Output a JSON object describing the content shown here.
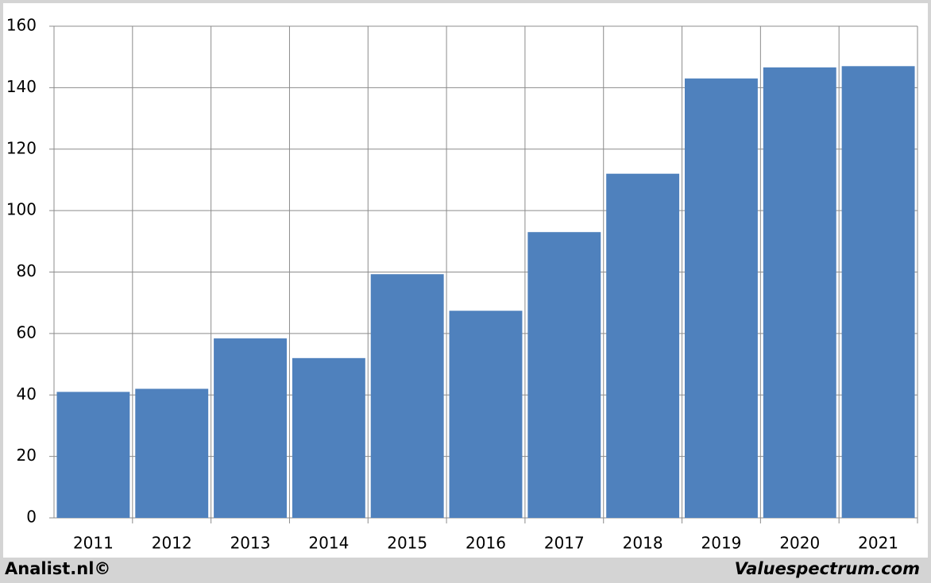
{
  "chart_data": {
    "type": "bar",
    "categories": [
      "2011",
      "2012",
      "2013",
      "2014",
      "2015",
      "2016",
      "2017",
      "2018",
      "2019",
      "2020",
      "2021"
    ],
    "values": [
      41,
      42,
      58.4,
      52,
      79.3,
      67.4,
      93,
      112,
      143,
      146.6,
      147
    ],
    "color": "#4f81bd",
    "ylim": [
      0,
      160
    ],
    "yticks": [
      0,
      20,
      40,
      60,
      80,
      100,
      120,
      140,
      160
    ],
    "grid": true
  },
  "footer": {
    "left": "Analist.nl©",
    "right": "Valuespectrum.com"
  }
}
